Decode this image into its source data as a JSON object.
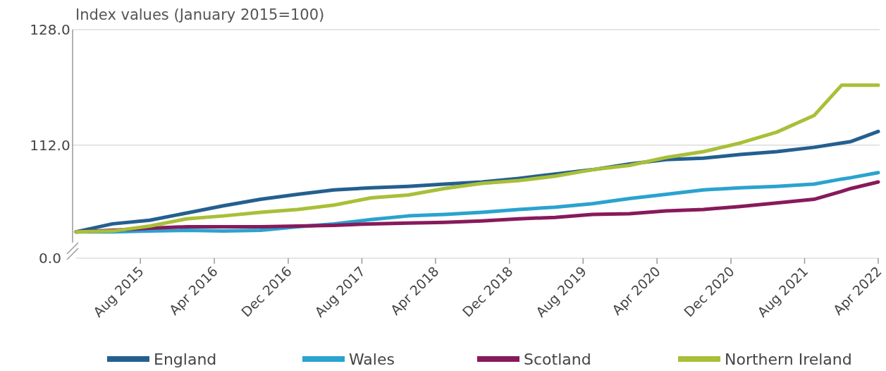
{
  "chart_data": {
    "type": "line",
    "annotations": [
      "Index values (January 2015=100)",
      "0.0"
    ],
    "xlim": [
      "2015-01",
      "2022-04"
    ],
    "ylim": [
      98.5,
      128
    ],
    "yticks": [
      {
        "value": 112,
        "label": "112.0"
      },
      {
        "value": 128,
        "label": "128.0"
      }
    ],
    "xticks": [
      {
        "value": "2015-08",
        "label": "Aug 2015"
      },
      {
        "value": "2016-04",
        "label": "Apr 2016"
      },
      {
        "value": "2016-12",
        "label": "Dec 2016"
      },
      {
        "value": "2017-08",
        "label": "Aug 2017"
      },
      {
        "value": "2018-04",
        "label": "Apr 2018"
      },
      {
        "value": "2018-12",
        "label": "Dec 2018"
      },
      {
        "value": "2019-08",
        "label": "Aug 2019"
      },
      {
        "value": "2020-04",
        "label": "Apr 2020"
      },
      {
        "value": "2020-12",
        "label": "Dec 2020"
      },
      {
        "value": "2021-08",
        "label": "Aug 2021"
      },
      {
        "value": "2022-04",
        "label": "Apr 2022"
      }
    ],
    "x": [
      "2015-01",
      "2015-05",
      "2015-09",
      "2016-01",
      "2016-05",
      "2016-09",
      "2017-01",
      "2017-05",
      "2017-09",
      "2018-01",
      "2018-05",
      "2018-09",
      "2019-01",
      "2019-05",
      "2019-09",
      "2020-01",
      "2020-05",
      "2020-09",
      "2021-01",
      "2021-05",
      "2021-09",
      "2021-12",
      "2022-01",
      "2022-04"
    ],
    "grid": "y",
    "legend": "bottom",
    "marker": "none",
    "line_style": "solid",
    "series": [
      {
        "name": "England",
        "color": "#245f8f",
        "values": [
          100.0,
          101.1,
          101.6,
          102.6,
          103.6,
          104.5,
          105.2,
          105.8,
          106.1,
          106.3,
          106.6,
          106.9,
          107.4,
          108.0,
          108.6,
          109.4,
          110.0,
          110.2,
          110.7,
          111.1,
          111.7,
          112.3,
          112.5,
          113.9
        ]
      },
      {
        "name": "Wales",
        "color": "#2aa3cf",
        "values": [
          100.0,
          100.0,
          100.1,
          100.2,
          100.1,
          100.2,
          100.7,
          101.1,
          101.7,
          102.2,
          102.4,
          102.7,
          103.1,
          103.4,
          103.9,
          104.6,
          105.2,
          105.8,
          106.1,
          106.3,
          106.6,
          107.3,
          107.5,
          108.2
        ]
      },
      {
        "name": "Scotland",
        "color": "#871a5b",
        "values": [
          100.0,
          100.2,
          100.5,
          100.7,
          100.7,
          100.7,
          100.8,
          100.9,
          101.1,
          101.2,
          101.3,
          101.5,
          101.8,
          102.0,
          102.4,
          102.5,
          102.9,
          103.1,
          103.5,
          104.0,
          104.5,
          105.6,
          106.0,
          106.9
        ]
      },
      {
        "name": "Northern Ireland",
        "color": "#a9bf38",
        "values": [
          100.0,
          100.1,
          100.8,
          101.8,
          102.2,
          102.7,
          103.1,
          103.7,
          104.7,
          105.1,
          106.0,
          106.7,
          107.1,
          107.7,
          108.6,
          109.2,
          110.3,
          111.1,
          112.3,
          113.8,
          116.1,
          120.3,
          120.3,
          120.3
        ]
      }
    ]
  }
}
